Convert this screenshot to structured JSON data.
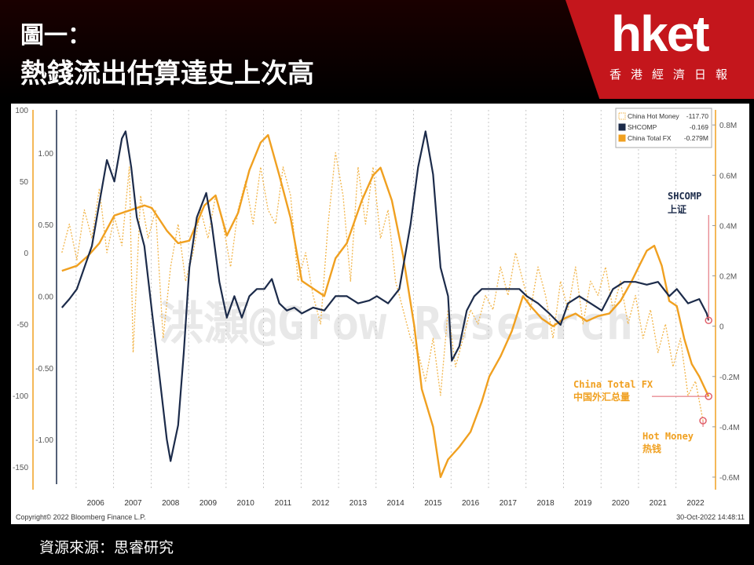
{
  "header": {
    "title_line1": "圖一：",
    "title_line2": "熱錢流出估算達史上次高",
    "brand": "hket",
    "brand_sub": "香港經濟日報"
  },
  "source": "資源來源：思睿研究",
  "colors": {
    "navy": "#1c2b4a",
    "orange": "#f0a020",
    "dotted": "#f2b54a",
    "marker": "#e0606a"
  },
  "chart_data": {
    "type": "line",
    "x_ticks": [
      "2006",
      "2007",
      "2008",
      "2009",
      "2010",
      "2011",
      "2012",
      "2013",
      "2014",
      "2015",
      "2016",
      "2017",
      "2018",
      "2019",
      "2020",
      "2021",
      "2022"
    ],
    "left_outer_ticks": [
      "100",
      "50",
      "0",
      "-50",
      "-100",
      "-150"
    ],
    "left_inner_ticks": [
      "1.00",
      "0.50",
      "0.00",
      "-0.50",
      "-1.00"
    ],
    "right_ticks": [
      "0.8M",
      "0.6M",
      "0.4M",
      "0.2M",
      "0",
      "-0.2M",
      "-0.4M",
      "-0.6M"
    ],
    "legend": [
      {
        "name": "China Hot Money",
        "value": "-117.70",
        "style": "dotted"
      },
      {
        "name": "SHCOMP",
        "value": "-0.169",
        "style": "navy"
      },
      {
        "name": "China Total FX",
        "value": "-0.279M",
        "style": "orange"
      }
    ],
    "annotations": {
      "shcomp": [
        "SHCOMP",
        "上证"
      ],
      "fx": [
        "China Total FX",
        "中国外汇总量"
      ],
      "hot": [
        "Hot Money",
        "热钱"
      ]
    },
    "footer_left": "Copyright© 2022 Bloomberg Finance L.P.",
    "footer_right": "30-Oct-2022 14:48:11",
    "watermark": "洪灝@Grow Research",
    "series": [
      {
        "name": "SHCOMP",
        "axis": "left_inner",
        "points": [
          [
            2005.6,
            -0.08
          ],
          [
            2005.8,
            -0.02
          ],
          [
            2006.0,
            0.05
          ],
          [
            2006.2,
            0.2
          ],
          [
            2006.4,
            0.35
          ],
          [
            2006.6,
            0.65
          ],
          [
            2006.8,
            0.95
          ],
          [
            2007.0,
            0.8
          ],
          [
            2007.2,
            1.1
          ],
          [
            2007.3,
            1.15
          ],
          [
            2007.45,
            0.9
          ],
          [
            2007.6,
            0.55
          ],
          [
            2007.8,
            0.35
          ],
          [
            2008.0,
            -0.1
          ],
          [
            2008.2,
            -0.55
          ],
          [
            2008.4,
            -1.0
          ],
          [
            2008.5,
            -1.15
          ],
          [
            2008.7,
            -0.9
          ],
          [
            2008.85,
            -0.4
          ],
          [
            2009.0,
            0.2
          ],
          [
            2009.2,
            0.55
          ],
          [
            2009.45,
            0.72
          ],
          [
            2009.6,
            0.5
          ],
          [
            2009.8,
            0.1
          ],
          [
            2010.0,
            -0.15
          ],
          [
            2010.2,
            0.0
          ],
          [
            2010.4,
            -0.15
          ],
          [
            2010.6,
            0.0
          ],
          [
            2010.8,
            0.05
          ],
          [
            2011.0,
            0.05
          ],
          [
            2011.2,
            0.12
          ],
          [
            2011.4,
            -0.05
          ],
          [
            2011.6,
            -0.1
          ],
          [
            2011.8,
            -0.08
          ],
          [
            2012.0,
            -0.12
          ],
          [
            2012.3,
            -0.08
          ],
          [
            2012.6,
            -0.1
          ],
          [
            2012.9,
            0.0
          ],
          [
            2013.2,
            0.0
          ],
          [
            2013.5,
            -0.05
          ],
          [
            2013.8,
            -0.03
          ],
          [
            2014.0,
            0.0
          ],
          [
            2014.3,
            -0.05
          ],
          [
            2014.6,
            0.05
          ],
          [
            2014.9,
            0.5
          ],
          [
            2015.1,
            0.9
          ],
          [
            2015.3,
            1.15
          ],
          [
            2015.5,
            0.85
          ],
          [
            2015.7,
            0.2
          ],
          [
            2015.9,
            0.0
          ],
          [
            2016.0,
            -0.45
          ],
          [
            2016.2,
            -0.35
          ],
          [
            2016.4,
            -0.1
          ],
          [
            2016.6,
            0.0
          ],
          [
            2016.8,
            0.05
          ],
          [
            2017.0,
            0.05
          ],
          [
            2017.4,
            0.05
          ],
          [
            2017.8,
            0.05
          ],
          [
            2018.0,
            0.0
          ],
          [
            2018.3,
            -0.05
          ],
          [
            2018.6,
            -0.12
          ],
          [
            2018.9,
            -0.2
          ],
          [
            2019.1,
            -0.05
          ],
          [
            2019.4,
            0.0
          ],
          [
            2019.7,
            -0.05
          ],
          [
            2020.0,
            -0.1
          ],
          [
            2020.3,
            0.05
          ],
          [
            2020.6,
            0.1
          ],
          [
            2020.9,
            0.1
          ],
          [
            2021.2,
            0.08
          ],
          [
            2021.5,
            0.1
          ],
          [
            2021.8,
            0.0
          ],
          [
            2022.0,
            0.05
          ],
          [
            2022.3,
            -0.05
          ],
          [
            2022.6,
            -0.02
          ],
          [
            2022.8,
            -0.12
          ],
          [
            2022.85,
            -0.169
          ]
        ]
      },
      {
        "name": "China Total FX",
        "axis": "right",
        "points": [
          [
            2005.6,
            0.22
          ],
          [
            2006.0,
            0.24
          ],
          [
            2006.3,
            0.28
          ],
          [
            2006.6,
            0.33
          ],
          [
            2007.0,
            0.44
          ],
          [
            2007.4,
            0.46
          ],
          [
            2007.8,
            0.48
          ],
          [
            2008.0,
            0.47
          ],
          [
            2008.4,
            0.38
          ],
          [
            2008.7,
            0.33
          ],
          [
            2009.0,
            0.34
          ],
          [
            2009.4,
            0.48
          ],
          [
            2009.7,
            0.52
          ],
          [
            2010.0,
            0.36
          ],
          [
            2010.3,
            0.45
          ],
          [
            2010.6,
            0.62
          ],
          [
            2010.9,
            0.73
          ],
          [
            2011.1,
            0.76
          ],
          [
            2011.4,
            0.6
          ],
          [
            2011.7,
            0.43
          ],
          [
            2012.0,
            0.18
          ],
          [
            2012.3,
            0.15
          ],
          [
            2012.6,
            0.12
          ],
          [
            2012.9,
            0.27
          ],
          [
            2013.2,
            0.33
          ],
          [
            2013.6,
            0.5
          ],
          [
            2013.9,
            0.6
          ],
          [
            2014.1,
            0.63
          ],
          [
            2014.4,
            0.5
          ],
          [
            2014.7,
            0.28
          ],
          [
            2015.0,
            0.0
          ],
          [
            2015.2,
            -0.25
          ],
          [
            2015.5,
            -0.4
          ],
          [
            2015.7,
            -0.6
          ],
          [
            2015.9,
            -0.53
          ],
          [
            2016.2,
            -0.48
          ],
          [
            2016.5,
            -0.42
          ],
          [
            2016.8,
            -0.3
          ],
          [
            2017.0,
            -0.2
          ],
          [
            2017.3,
            -0.12
          ],
          [
            2017.6,
            -0.02
          ],
          [
            2017.9,
            0.12
          ],
          [
            2018.1,
            0.08
          ],
          [
            2018.4,
            0.03
          ],
          [
            2018.7,
            0.0
          ],
          [
            2019.0,
            0.03
          ],
          [
            2019.3,
            0.05
          ],
          [
            2019.6,
            0.02
          ],
          [
            2019.9,
            0.04
          ],
          [
            2020.2,
            0.05
          ],
          [
            2020.5,
            0.1
          ],
          [
            2020.8,
            0.18
          ],
          [
            2021.0,
            0.24
          ],
          [
            2021.2,
            0.3
          ],
          [
            2021.4,
            0.32
          ],
          [
            2021.6,
            0.24
          ],
          [
            2021.8,
            0.1
          ],
          [
            2022.0,
            0.08
          ],
          [
            2022.2,
            -0.05
          ],
          [
            2022.4,
            -0.15
          ],
          [
            2022.6,
            -0.2
          ],
          [
            2022.85,
            -0.279
          ]
        ]
      },
      {
        "name": "China Hot Money",
        "axis": "left_outer",
        "points": [
          [
            2005.6,
            0
          ],
          [
            2005.8,
            20
          ],
          [
            2006.0,
            -5
          ],
          [
            2006.2,
            30
          ],
          [
            2006.4,
            10
          ],
          [
            2006.6,
            45
          ],
          [
            2006.8,
            0
          ],
          [
            2007.0,
            25
          ],
          [
            2007.2,
            5
          ],
          [
            2007.4,
            60
          ],
          [
            2007.5,
            -70
          ],
          [
            2007.7,
            40
          ],
          [
            2007.9,
            10
          ],
          [
            2008.1,
            30
          ],
          [
            2008.3,
            -60
          ],
          [
            2008.5,
            -10
          ],
          [
            2008.7,
            20
          ],
          [
            2008.9,
            -20
          ],
          [
            2009.1,
            0
          ],
          [
            2009.3,
            30
          ],
          [
            2009.5,
            10
          ],
          [
            2009.7,
            40
          ],
          [
            2009.9,
            20
          ],
          [
            2010.1,
            -10
          ],
          [
            2010.3,
            30
          ],
          [
            2010.5,
            50
          ],
          [
            2010.7,
            20
          ],
          [
            2010.9,
            60
          ],
          [
            2011.1,
            30
          ],
          [
            2011.3,
            20
          ],
          [
            2011.5,
            60
          ],
          [
            2011.7,
            40
          ],
          [
            2011.9,
            -20
          ],
          [
            2012.1,
            0
          ],
          [
            2012.3,
            -30
          ],
          [
            2012.5,
            -50
          ],
          [
            2012.7,
            20
          ],
          [
            2012.9,
            70
          ],
          [
            2013.1,
            40
          ],
          [
            2013.3,
            -20
          ],
          [
            2013.5,
            60
          ],
          [
            2013.7,
            20
          ],
          [
            2013.9,
            60
          ],
          [
            2014.1,
            10
          ],
          [
            2014.3,
            30
          ],
          [
            2014.5,
            -20
          ],
          [
            2014.7,
            -40
          ],
          [
            2014.9,
            -60
          ],
          [
            2015.1,
            -70
          ],
          [
            2015.3,
            -90
          ],
          [
            2015.5,
            -60
          ],
          [
            2015.7,
            -100
          ],
          [
            2015.9,
            -40
          ],
          [
            2016.1,
            -80
          ],
          [
            2016.3,
            -60
          ],
          [
            2016.5,
            -40
          ],
          [
            2016.7,
            -50
          ],
          [
            2016.9,
            -30
          ],
          [
            2017.1,
            -40
          ],
          [
            2017.3,
            -10
          ],
          [
            2017.5,
            -30
          ],
          [
            2017.7,
            0
          ],
          [
            2017.9,
            -20
          ],
          [
            2018.1,
            -40
          ],
          [
            2018.3,
            -10
          ],
          [
            2018.5,
            -30
          ],
          [
            2018.7,
            -60
          ],
          [
            2018.9,
            -20
          ],
          [
            2019.1,
            -40
          ],
          [
            2019.3,
            -10
          ],
          [
            2019.5,
            -50
          ],
          [
            2019.7,
            -20
          ],
          [
            2019.9,
            -30
          ],
          [
            2020.1,
            -10
          ],
          [
            2020.3,
            -40
          ],
          [
            2020.5,
            -20
          ],
          [
            2020.7,
            -50
          ],
          [
            2020.9,
            -30
          ],
          [
            2021.1,
            -60
          ],
          [
            2021.3,
            -40
          ],
          [
            2021.5,
            -70
          ],
          [
            2021.7,
            -50
          ],
          [
            2021.9,
            -80
          ],
          [
            2022.1,
            -60
          ],
          [
            2022.3,
            -100
          ],
          [
            2022.5,
            -90
          ],
          [
            2022.7,
            -117.7
          ]
        ]
      }
    ]
  }
}
